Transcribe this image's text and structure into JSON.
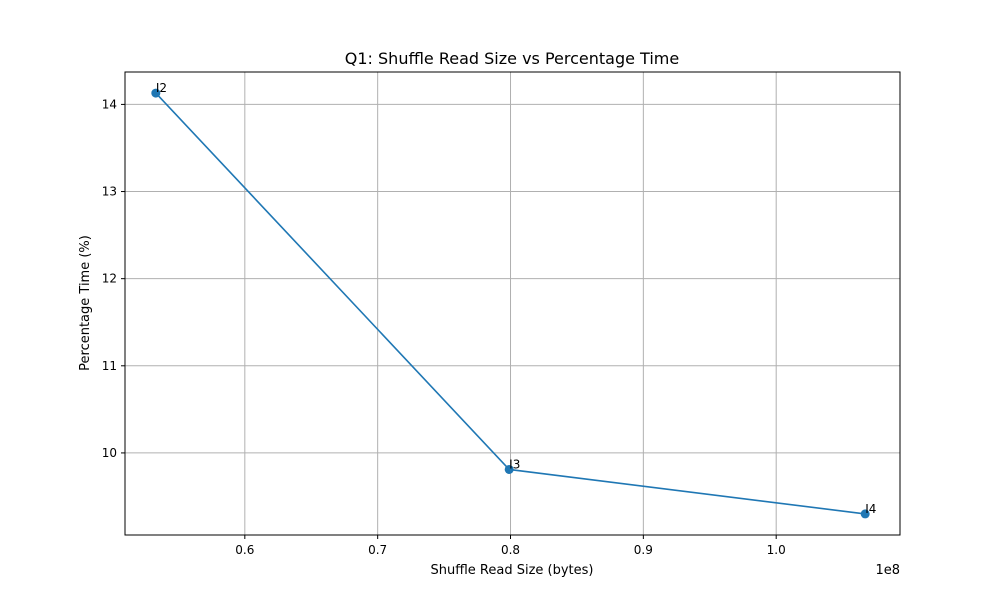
{
  "chart_data": {
    "type": "line",
    "title": "Q1: Shuffle Read Size vs Percentage Time",
    "xlabel": "Shuffle Read Size (bytes)",
    "ylabel": "Percentage Time (%)",
    "x_offset_label": "1e8",
    "xlim": [
      0.5098,
      1.0932
    ],
    "ylim": [
      9.058,
      14.372
    ],
    "x_scale": 100000000.0,
    "xticks": [
      0.6,
      0.7,
      0.8,
      0.9,
      1.0
    ],
    "yticks": [
      10,
      11,
      12,
      13,
      14
    ],
    "grid": true,
    "marker": "circle",
    "color": "#1f77b4",
    "series": [
      {
        "x": [
          53300000,
          79900000,
          106700000
        ],
        "y": [
          14.13,
          9.81,
          9.3
        ],
        "labels": [
          "I2",
          "I3",
          "I4"
        ]
      }
    ]
  }
}
